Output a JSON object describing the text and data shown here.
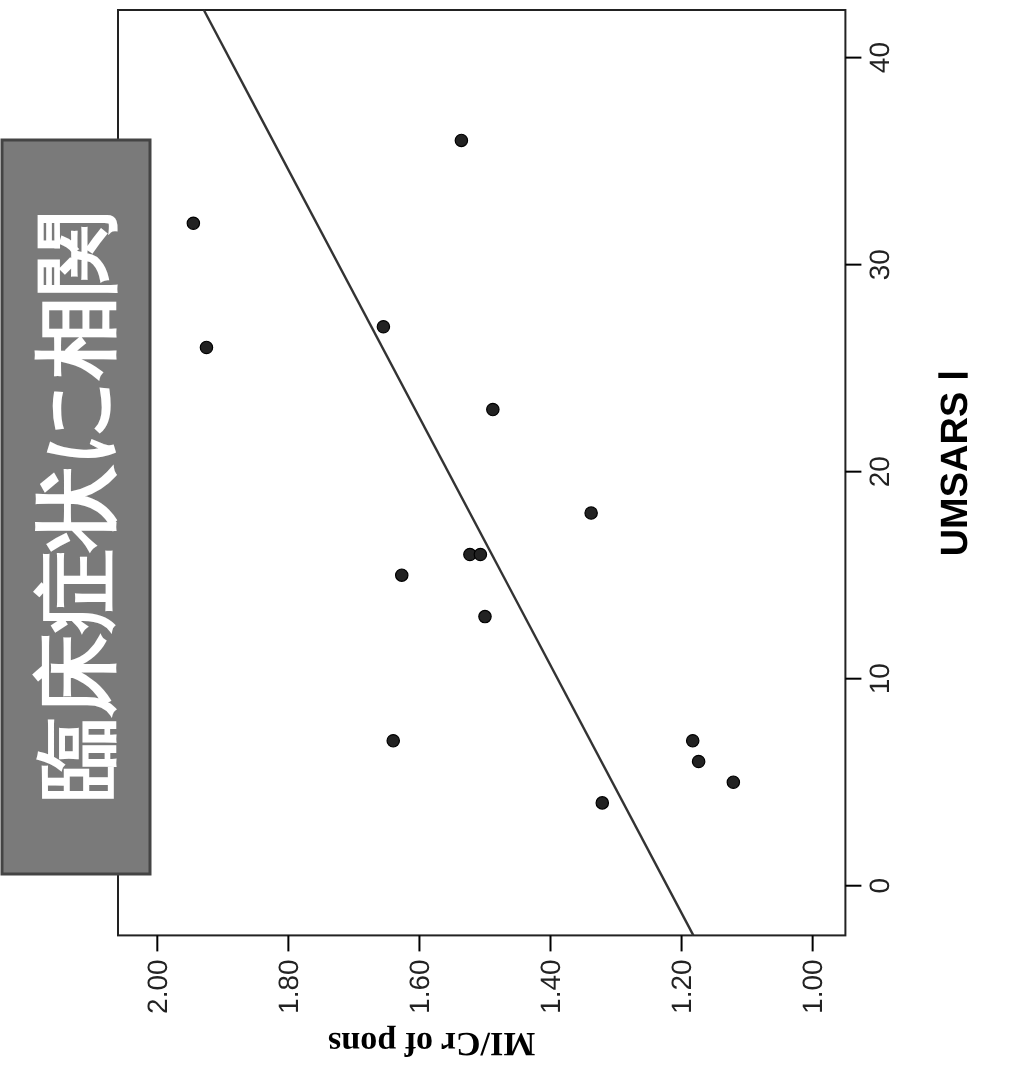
{
  "chart_data": {
    "type": "scatter",
    "xlabel": "MI/Cr of pons",
    "ylabel": "UMSARS Ⅰ",
    "annotations": [
      "臨床症状に相関"
    ],
    "xlim": [
      2.06,
      0.95
    ],
    "xticks": [
      {
        "value": 2,
        "label": "2.00"
      },
      {
        "value": 1.8,
        "label": "1.80"
      },
      {
        "value": 1.6,
        "label": "1.60"
      },
      {
        "value": 1.4,
        "label": "1.40"
      },
      {
        "value": 1.2,
        "label": "1.20"
      },
      {
        "value": 1,
        "label": "1.00"
      }
    ],
    "ylim": [
      -2.4,
      42.3
    ],
    "yticks": [
      0,
      10,
      20,
      30,
      40
    ],
    "grid": false,
    "marker": "circle",
    "series": [
      {
        "color": "#222222",
        "x": [
          1.536,
          1.945,
          1.925,
          1.655,
          1.488,
          1.338,
          1.523,
          1.507,
          1.627,
          1.5,
          1.64,
          1.183,
          1.174,
          1.121,
          1.321
        ],
        "values": [
          36,
          32,
          26,
          27,
          23,
          18,
          16,
          16,
          15,
          13,
          7,
          7,
          6,
          5,
          4
        ]
      },
      {
        "type": "line",
        "color": "#333333",
        "line_style": "solid",
        "marker": "none",
        "x": [
          1.182,
          1.929
        ],
        "values": [
          -2.4,
          42.3
        ]
      }
    ]
  }
}
